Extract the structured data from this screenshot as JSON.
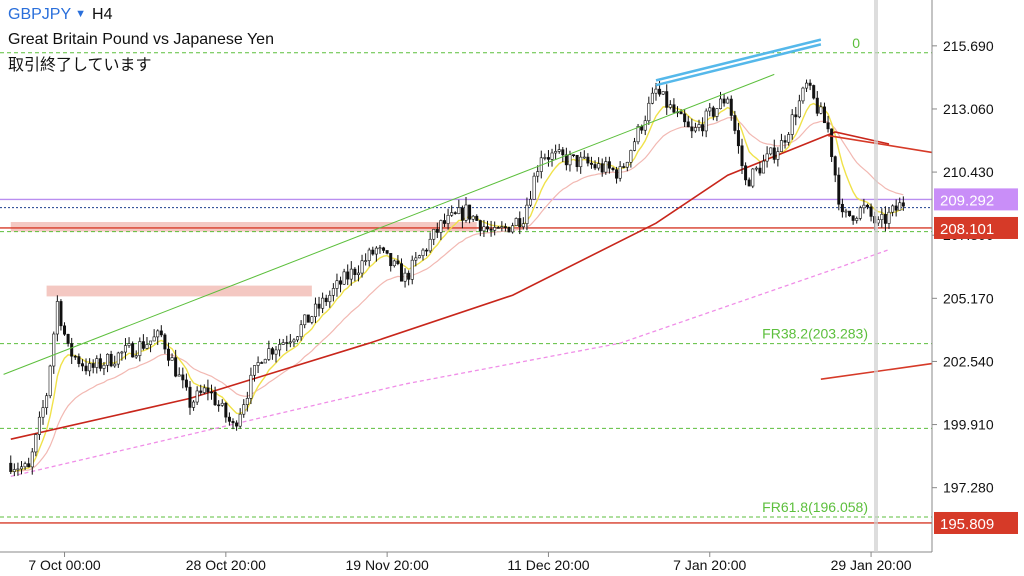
{
  "header": {
    "symbol": "GBPJPY",
    "timeframe": "H4",
    "description": "Great Britain Pound vs Japanese Yen",
    "status": "取引終了しています"
  },
  "colors": {
    "candle": "#111111",
    "ema_short": "#f0e24a",
    "ma_mid": "#f2b8b2",
    "ma_long": "#c8261b",
    "ma_200": "#f08ee8",
    "fib": "#5cbf3c",
    "channel": "#5cbf3c",
    "upper_line": "#55b8ea",
    "level_red": "#d63a28",
    "zone": "#f0b6ad",
    "purple_line": "#b98ef0",
    "price_dotted": "#1d3f8f",
    "last_label_bg": "#c98ef8",
    "red_label_bg": "#d63a28"
  },
  "chart_data": {
    "type": "candlestick",
    "symbol": "GBPJPY",
    "timeframe": "H4",
    "y_axis": {
      "range": [
        194.6,
        217.6
      ],
      "ticks": [
        215.69,
        213.06,
        210.43,
        207.8,
        205.17,
        202.54,
        199.91,
        197.28
      ],
      "tick_labels": [
        "215.690",
        "213.060",
        "210.430",
        "207.800",
        "205.170",
        "202.540",
        "199.910",
        "197.280"
      ]
    },
    "x_axis": {
      "tick_labels": [
        "7 Oct 00:00",
        "28 Oct 20:00",
        "19 Nov 20:00",
        "11 Dec 20:00",
        "7 Jan 20:00",
        "29 Jan 20:00"
      ],
      "tick_bars": [
        15,
        60,
        105,
        150,
        195,
        240
      ]
    },
    "bars": 250,
    "close_path": [
      [
        0,
        198.3
      ],
      [
        5,
        198.0
      ],
      [
        10,
        201.2
      ],
      [
        13,
        205.0
      ],
      [
        16,
        203.0
      ],
      [
        22,
        202.2
      ],
      [
        30,
        202.8
      ],
      [
        42,
        203.6
      ],
      [
        50,
        200.8
      ],
      [
        55,
        201.4
      ],
      [
        62,
        199.8
      ],
      [
        70,
        202.8
      ],
      [
        80,
        203.8
      ],
      [
        92,
        205.8
      ],
      [
        102,
        207.2
      ],
      [
        110,
        206.0
      ],
      [
        120,
        208.2
      ],
      [
        127,
        208.8
      ],
      [
        135,
        207.8
      ],
      [
        143,
        208.6
      ],
      [
        148,
        211.2
      ],
      [
        160,
        210.8
      ],
      [
        170,
        210.4
      ],
      [
        180,
        213.8
      ],
      [
        190,
        212.0
      ],
      [
        200,
        213.6
      ],
      [
        205,
        210.0
      ],
      [
        215,
        211.6
      ],
      [
        222,
        214.0
      ],
      [
        228,
        212.2
      ],
      [
        232,
        208.5
      ],
      [
        238,
        208.9
      ],
      [
        242,
        208.2
      ],
      [
        250,
        209.29
      ]
    ],
    "current_price": 209.292,
    "current_price_label": "209.292",
    "levels": [
      {
        "name": "fib-0",
        "value": 215.4,
        "label": "0",
        "style": "dashed",
        "color": "#5cbf3c"
      },
      {
        "name": "fib-green",
        "value": 207.95,
        "label": "",
        "style": "dashed",
        "color": "#5cbf3c"
      },
      {
        "name": "fib-38.2",
        "value": 203.283,
        "label": "FR38.2(203.283)",
        "style": "dashed",
        "color": "#5cbf3c"
      },
      {
        "name": "fib-low",
        "value": 199.75,
        "label": "",
        "style": "dashed",
        "color": "#5cbf3c"
      },
      {
        "name": "fib-61.8",
        "value": 196.058,
        "label": "FR61.8(196.058)",
        "style": "dashed",
        "color": "#5cbf3c"
      },
      {
        "name": "purple-level",
        "value": 209.292,
        "label": "209.292",
        "style": "solid",
        "color": "#b98ef0"
      },
      {
        "name": "red-level-1",
        "value": 208.101,
        "label": "208.101",
        "style": "solid",
        "color": "#d63a28"
      },
      {
        "name": "red-level-2",
        "value": 195.809,
        "label": "195.809",
        "style": "solid",
        "color": "#d63a28"
      },
      {
        "name": "dotted-price",
        "value": 208.95,
        "label": "",
        "style": "dotted",
        "color": "#1d3f8f"
      }
    ],
    "zones": [
      {
        "from_bar": 0,
        "to_bar": 130,
        "top": 208.35,
        "bottom": 207.95
      },
      {
        "from_bar": 10,
        "to_bar": 84,
        "top": 205.7,
        "bottom": 205.25
      }
    ],
    "trendlines": [
      {
        "name": "channel-lower",
        "from": [
          -2,
          202.0
        ],
        "to": [
          213,
          214.5
        ],
        "color": "#5cbf3c"
      },
      {
        "name": "upper-line-a",
        "from": [
          180,
          214.25
        ],
        "to": [
          226,
          215.95
        ],
        "color": "#55b8ea"
      },
      {
        "name": "upper-line-b",
        "from": [
          180,
          214.05
        ],
        "to": [
          226,
          215.75
        ],
        "color": "#55b8ea"
      },
      {
        "name": "red-ray-1",
        "from": [
          228,
          211.95
        ],
        "to": [
          257,
          211.25
        ],
        "color": "#d63a28"
      },
      {
        "name": "red-ray-2",
        "from": [
          226,
          201.8
        ],
        "to": [
          257,
          202.45
        ],
        "color": "#d63a28"
      }
    ],
    "moving_averages": [
      {
        "name": "ma-200",
        "path": [
          [
            0,
            197.75
          ],
          [
            60,
            199.85
          ],
          [
            110,
            201.6
          ],
          [
            170,
            203.3
          ],
          [
            230,
            206.4
          ],
          [
            245,
            207.2
          ]
        ]
      },
      {
        "name": "ma-long",
        "path": [
          [
            0,
            199.3
          ],
          [
            50,
            201.0
          ],
          [
            100,
            203.3
          ],
          [
            140,
            205.3
          ],
          [
            180,
            208.3
          ],
          [
            200,
            210.3
          ],
          [
            220,
            211.5
          ],
          [
            230,
            212.1
          ],
          [
            245,
            211.6
          ]
        ]
      }
    ],
    "xlim": [
      -3,
      257
    ],
    "grid": false,
    "legend": "none"
  }
}
